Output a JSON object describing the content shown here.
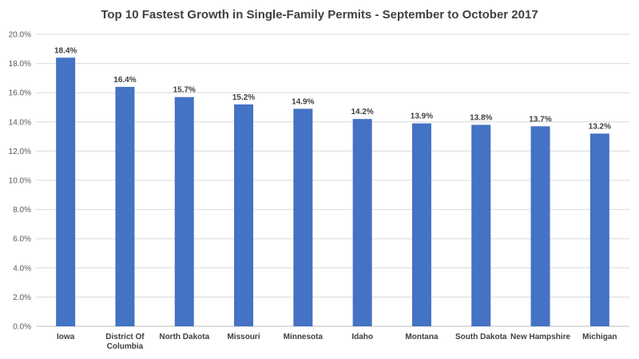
{
  "chart_data": {
    "type": "bar",
    "title": "Top 10 Fastest Growth in Single-Family Permits - September to October 2017",
    "xlabel": "",
    "ylabel": "",
    "categories": [
      "Iowa",
      "District Of Columbia",
      "North Dakota",
      "Missouri",
      "Minnesota",
      "Idaho",
      "Montana",
      "South Dakota",
      "New Hampshire",
      "Michigan"
    ],
    "category_lines": [
      [
        "Iowa"
      ],
      [
        "District Of",
        "Columbia"
      ],
      [
        "North Dakota"
      ],
      [
        "Missouri"
      ],
      [
        "Minnesota"
      ],
      [
        "Idaho"
      ],
      [
        "Montana"
      ],
      [
        "South Dakota"
      ],
      [
        "New Hampshire"
      ],
      [
        "Michigan"
      ]
    ],
    "values": [
      18.4,
      16.4,
      15.7,
      15.2,
      14.9,
      14.2,
      13.9,
      13.8,
      13.7,
      13.2
    ],
    "data_labels": [
      "18.4%",
      "16.4%",
      "15.7%",
      "15.2%",
      "14.9%",
      "14.2%",
      "13.9%",
      "13.8%",
      "13.7%",
      "13.2%"
    ],
    "ylim": [
      0,
      20
    ],
    "yticks": [
      0,
      2,
      4,
      6,
      8,
      10,
      12,
      14,
      16,
      18,
      20
    ],
    "ytick_labels": [
      "0.0%",
      "2.0%",
      "4.0%",
      "6.0%",
      "8.0%",
      "10.0%",
      "12.0%",
      "14.0%",
      "16.0%",
      "18.0%",
      "20.0%"
    ],
    "grid": true,
    "legend": "none",
    "colors": {
      "bar": "#4472C4",
      "grid": "#D9D9D9",
      "text": "#404040"
    }
  }
}
